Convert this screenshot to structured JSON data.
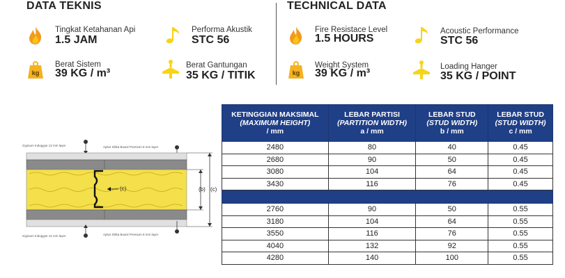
{
  "left": {
    "heading": "DATA TEKNIS",
    "specs": [
      {
        "label": "Tingkat Ketahanan Api",
        "value": "1.5 JAM",
        "icon": "fire-icon"
      },
      {
        "label": "Performa Akustik",
        "value": "STC 56",
        "icon": "music-note-icon"
      },
      {
        "label": "Berat Sistem",
        "value": "39 KG / m³",
        "icon": "weight-icon"
      },
      {
        "label": "Berat Gantungan",
        "value": "35 KG / TITIK",
        "icon": "hanger-icon"
      }
    ]
  },
  "right": {
    "heading": "TECHNICAL DATA",
    "specs": [
      {
        "label": "Fire Resistace Level",
        "value": "1.5 HOURS",
        "icon": "fire-icon"
      },
      {
        "label": "Acoustic Performance",
        "value": "STC 56",
        "icon": "music-note-icon"
      },
      {
        "label": "Weight System",
        "value": "39 KG / m³",
        "icon": "weight-icon"
      },
      {
        "label": "Loading Hanger",
        "value": "35 KG / POINT",
        "icon": "hanger-icon"
      }
    ]
  },
  "weight_icon_text": "kg",
  "diagram": {
    "label_top_left": "Gypsum Indogype 12 mm layer",
    "label_top_right": "Aplus Silika Board Premium 8 mm layer",
    "label_bottom_left": "Gypsum Indogype 12 mm layer",
    "label_bottom_right": "Aplus Silika Board Premium 8 mm layer",
    "stud_label": "(c)",
    "dim_b": "(b)",
    "dim_c": "(c)"
  },
  "table": {
    "headers": [
      {
        "line1": "KETINGGIAN MAKSIMAL",
        "line2": "(MAXIMUM HEIGHT)",
        "line3": "/ mm"
      },
      {
        "line1": "LEBAR PARTISI",
        "line2": "(PARTITION WIDTH)",
        "line3": "a / mm"
      },
      {
        "line1": "LEBAR STUD",
        "line2": "(STUD WIDTH)",
        "line3": "b / mm"
      },
      {
        "line1": "LEBAR STUD",
        "line2": "(STUD WIDTH)",
        "line3": "c / mm"
      }
    ],
    "group1": [
      [
        "2480",
        "80",
        "40",
        "0.45"
      ],
      [
        "2680",
        "90",
        "50",
        "0.45"
      ],
      [
        "3080",
        "104",
        "64",
        "0.45"
      ],
      [
        "3430",
        "116",
        "76",
        "0.45"
      ]
    ],
    "group2": [
      [
        "2760",
        "90",
        "50",
        "0.55"
      ],
      [
        "3180",
        "104",
        "64",
        "0.55"
      ],
      [
        "3550",
        "116",
        "76",
        "0.55"
      ],
      [
        "4040",
        "132",
        "92",
        "0.55"
      ],
      [
        "4280",
        "140",
        "100",
        "0.55"
      ]
    ]
  },
  "colors": {
    "navy": "#1f3f87",
    "icon_orange": "#f39a1e",
    "icon_yellow": "#f7d417",
    "insulation": "#f4e04a",
    "board": "#c8c8c8"
  }
}
